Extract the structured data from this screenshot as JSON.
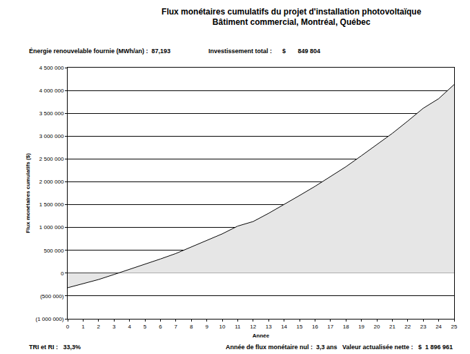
{
  "chart_data": {
    "type": "area",
    "title": "Flux monétaires cumulatifs du projet d'installation photovoltaïque",
    "subtitle": "Bâtiment commercial, Montréal, Québec",
    "x_label": "Année",
    "y_label": "Flux monétaires cumulatifs ($)",
    "annotations": [
      "Énergie renouvelable fournie (MWh/an) :  87,193",
      "Investissement total :      $       849 804",
      "TRI et RI :   33,3%",
      "Année de flux monétaire nul :  3,3 ans",
      "Valeur actualisée nette :   $  1 896 961"
    ],
    "x": [
      0,
      1,
      2,
      3,
      4,
      5,
      6,
      7,
      8,
      9,
      10,
      11,
      12,
      13,
      14,
      15,
      16,
      17,
      18,
      19,
      20,
      21,
      22,
      23,
      24,
      25
    ],
    "values": [
      -320000,
      -230000,
      -140000,
      -30000,
      80000,
      190000,
      310000,
      430000,
      570000,
      710000,
      860000,
      1030000,
      1130000,
      1310000,
      1500000,
      1700000,
      1900000,
      2110000,
      2330000,
      2570000,
      2810000,
      3060000,
      3330000,
      3610000,
      3820000,
      4130000
    ],
    "color": "#e6e6e6",
    "xlim": [
      0,
      25
    ],
    "xticks": [
      0,
      1,
      2,
      3,
      4,
      5,
      6,
      7,
      8,
      9,
      10,
      11,
      12,
      13,
      14,
      15,
      16,
      17,
      18,
      19,
      20,
      21,
      22,
      23,
      24,
      25
    ],
    "ylim": [
      -1000000,
      4500000
    ],
    "yticks": [
      {
        "value": -1000000,
        "label": "(1 000 000)"
      },
      {
        "value": -500000,
        "label": "(500 000)"
      },
      0,
      {
        "value": 500000,
        "label": "500 000"
      },
      {
        "value": 1000000,
        "label": "1 000 000"
      },
      {
        "value": 1500000,
        "label": "1 500 000"
      },
      {
        "value": 2000000,
        "label": "2 000 000"
      },
      {
        "value": 2500000,
        "label": "2 500 000"
      },
      {
        "value": 3000000,
        "label": "3 000 000"
      },
      {
        "value": 3500000,
        "label": "3 500 000"
      },
      {
        "value": 4000000,
        "label": "4 000 000"
      },
      {
        "value": 4500000,
        "label": "4 500 000"
      }
    ],
    "grid": true
  }
}
